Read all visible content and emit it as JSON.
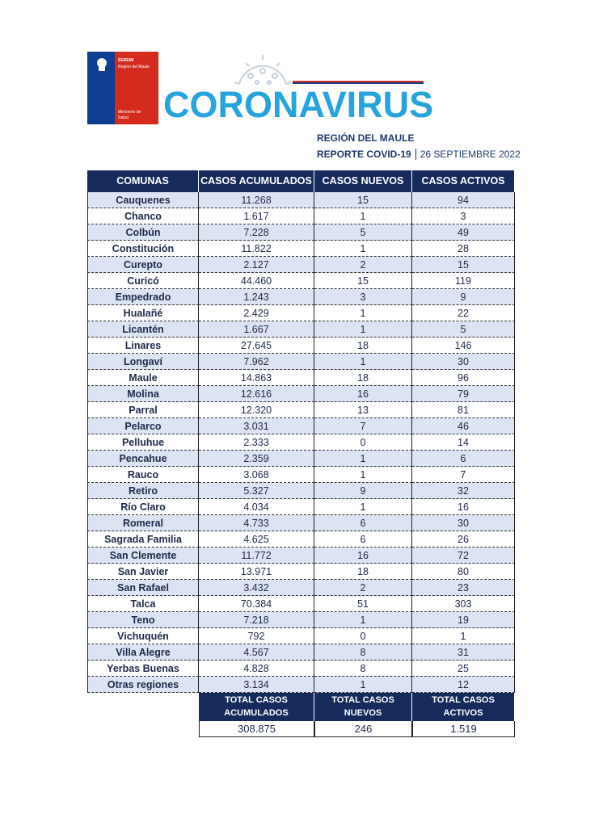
{
  "logo": {
    "line1": "SEREMI",
    "line2": "Región del Maule",
    "line3": "Ministerio de",
    "line4": "Salud"
  },
  "header": {
    "title": "CORONAVIRUS",
    "region": "REGIÓN DEL MAULE",
    "report": "REPORTE COVID-19",
    "date": "26 SEPTIEMBRE 2022"
  },
  "table": {
    "columns": [
      "COMUNAS",
      "CASOS ACUMULADOS",
      "CASOS NUEVOS",
      "CASOS ACTIVOS"
    ],
    "rows": [
      [
        "Cauquenes",
        "11.268",
        "15",
        "94"
      ],
      [
        "Chanco",
        "1.617",
        "1",
        "3"
      ],
      [
        "Colbún",
        "7.228",
        "5",
        "49"
      ],
      [
        "Constitución",
        "11.822",
        "1",
        "28"
      ],
      [
        "Curepto",
        "2.127",
        "2",
        "15"
      ],
      [
        "Curicó",
        "44.460",
        "15",
        "119"
      ],
      [
        "Empedrado",
        "1.243",
        "3",
        "9"
      ],
      [
        "Hualañé",
        "2.429",
        "1",
        "22"
      ],
      [
        "Licantén",
        "1.667",
        "1",
        "5"
      ],
      [
        "Linares",
        "27.645",
        "18",
        "146"
      ],
      [
        "Longaví",
        "7.962",
        "1",
        "30"
      ],
      [
        "Maule",
        "14.863",
        "18",
        "96"
      ],
      [
        "Molina",
        "12.616",
        "16",
        "79"
      ],
      [
        "Parral",
        "12.320",
        "13",
        "81"
      ],
      [
        "Pelarco",
        "3.031",
        "7",
        "46"
      ],
      [
        "Pelluhue",
        "2.333",
        "0",
        "14"
      ],
      [
        "Pencahue",
        "2.359",
        "1",
        "6"
      ],
      [
        "Rauco",
        "3.068",
        "1",
        "7"
      ],
      [
        "Retiro",
        "5.327",
        "9",
        "32"
      ],
      [
        "Río Claro",
        "4.034",
        "1",
        "16"
      ],
      [
        "Romeral",
        "4.733",
        "6",
        "30"
      ],
      [
        "Sagrada Familia",
        "4.625",
        "6",
        "26"
      ],
      [
        "San Clemente",
        "11.772",
        "16",
        "72"
      ],
      [
        "San Javier",
        "13.971",
        "18",
        "80"
      ],
      [
        "San Rafael",
        "3.432",
        "2",
        "23"
      ],
      [
        "Talca",
        "70.384",
        "51",
        "303"
      ],
      [
        "Teno",
        "7.218",
        "1",
        "19"
      ],
      [
        "Vichuquén",
        "792",
        "0",
        "1"
      ],
      [
        "Villa Alegre",
        "4.567",
        "8",
        "31"
      ],
      [
        "Yerbas Buenas",
        "4.828",
        "8",
        "25"
      ],
      [
        "Otras regiones",
        "3.134",
        "1",
        "12"
      ]
    ]
  },
  "totals": {
    "labels": [
      [
        "TOTAL CASOS",
        "ACUMULADOS"
      ],
      [
        "TOTAL CASOS",
        "NUEVOS"
      ],
      [
        "TOTAL CASOS",
        "ACTIVOS"
      ]
    ],
    "values": [
      "308.875",
      "246",
      "1.519"
    ]
  }
}
